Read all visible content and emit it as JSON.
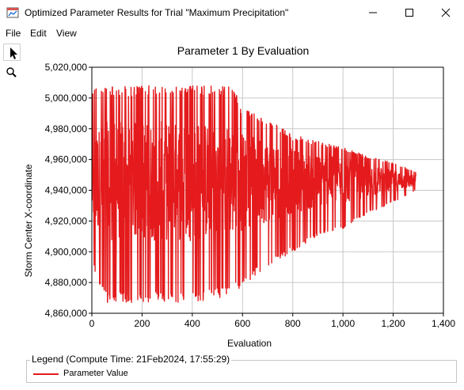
{
  "window": {
    "title": "Optimized Parameter Results for Trial \"Maximum Precipitation\""
  },
  "menu": {
    "items": [
      "File",
      "Edit",
      "View"
    ]
  },
  "tools": [
    {
      "icon": "arrow-pointer-icon",
      "selected": true
    },
    {
      "icon": "zoom-magnifier-icon",
      "selected": false
    }
  ],
  "colors": {
    "series": "#e41a1c",
    "grid": "#c8c8c8"
  },
  "chart_data": {
    "type": "line",
    "title": "Parameter 1 By Evaluation",
    "xlabel": "Evaluation",
    "ylabel": "Storm Center X-coordinate",
    "xlim": [
      0,
      1400
    ],
    "ylim": [
      4860000,
      5020000
    ],
    "x_ticks": [
      0,
      200,
      400,
      600,
      800,
      1000,
      1200,
      1400
    ],
    "x_tick_labels": [
      "0",
      "200",
      "400",
      "600",
      "800",
      "1,000",
      "1,200",
      "1,400"
    ],
    "y_ticks": [
      4860000,
      4880000,
      4900000,
      4920000,
      4940000,
      4960000,
      4980000,
      5000000,
      5020000
    ],
    "y_tick_labels": [
      "4,860,000",
      "4,880,000",
      "4,900,000",
      "4,920,000",
      "4,940,000",
      "4,960,000",
      "4,980,000",
      "5,000,000",
      "5,020,000"
    ],
    "grid": true,
    "series": [
      {
        "name": "Parameter Value",
        "color": "#e41a1c",
        "x_range": [
          1,
          1290
        ],
        "envelope": [
          {
            "x": 0,
            "min": 4890000,
            "max": 5008000
          },
          {
            "x": 60,
            "min": 4867000,
            "max": 5008000
          },
          {
            "x": 300,
            "min": 4867000,
            "max": 5008000
          },
          {
            "x": 420,
            "min": 4867000,
            "max": 5008000
          },
          {
            "x": 560,
            "min": 4872000,
            "max": 5008000
          },
          {
            "x": 600,
            "min": 4878000,
            "max": 4993000
          },
          {
            "x": 700,
            "min": 4890000,
            "max": 4986000
          },
          {
            "x": 800,
            "min": 4900000,
            "max": 4976000
          },
          {
            "x": 900,
            "min": 4910000,
            "max": 4972000
          },
          {
            "x": 1000,
            "min": 4915000,
            "max": 4968000
          },
          {
            "x": 1100,
            "min": 4925000,
            "max": 4962000
          },
          {
            "x": 1200,
            "min": 4932000,
            "max": 4958000
          },
          {
            "x": 1290,
            "min": 4940000,
            "max": 4952000
          }
        ],
        "central_value": 4946000
      }
    ]
  },
  "legend": {
    "title": "Legend (Compute Time: 21Feb2024, 17:55:29)",
    "entries": [
      "Parameter Value"
    ]
  }
}
